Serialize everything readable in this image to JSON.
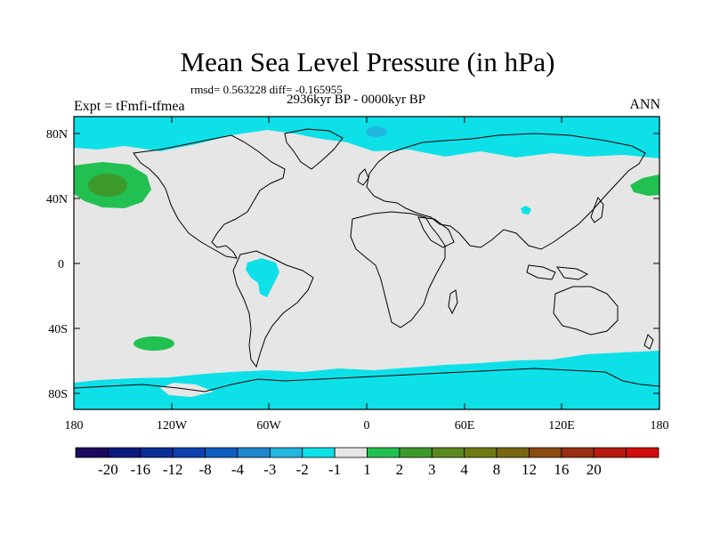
{
  "title": "Mean Sea Level Pressure (in hPa)",
  "stats": "rmsd= 0.563228 diff= -0.165955",
  "period": "2936kyr BP - 0000kyr BP",
  "experiment": "Expt = tFmfi-tfmea",
  "season": "ANN",
  "axes": {
    "y_ticks": [
      "80N",
      "40N",
      "0",
      "40S",
      "80S"
    ],
    "x_ticks": [
      "180",
      "120W",
      "60W",
      "0",
      "60E",
      "120E",
      "180"
    ]
  },
  "colorbar": {
    "colors": [
      "#1a0a5c",
      "#0b1a7c",
      "#0a2c96",
      "#0d3fae",
      "#0f5cc0",
      "#1e88d0",
      "#22b6e0",
      "#0ee0e8",
      "#e6e6e6",
      "#22c050",
      "#3c9a2c",
      "#5a8a1e",
      "#6e7a12",
      "#7a6610",
      "#8a4a10",
      "#9a2e10",
      "#b81a10",
      "#d40c0c"
    ],
    "labels": [
      "-20",
      "-16",
      "-12",
      "-8",
      "-4",
      "-3",
      "-2",
      "-1",
      "1",
      "2",
      "3",
      "4",
      "8",
      "12",
      "16",
      "20"
    ]
  },
  "colors": {
    "land_background": "#e6e6e6",
    "negative_anomaly": "#0ee0e8",
    "negative_strong": "#22b6e0",
    "positive_anomaly": "#22c050",
    "positive_strong": "#3c9a2c"
  }
}
